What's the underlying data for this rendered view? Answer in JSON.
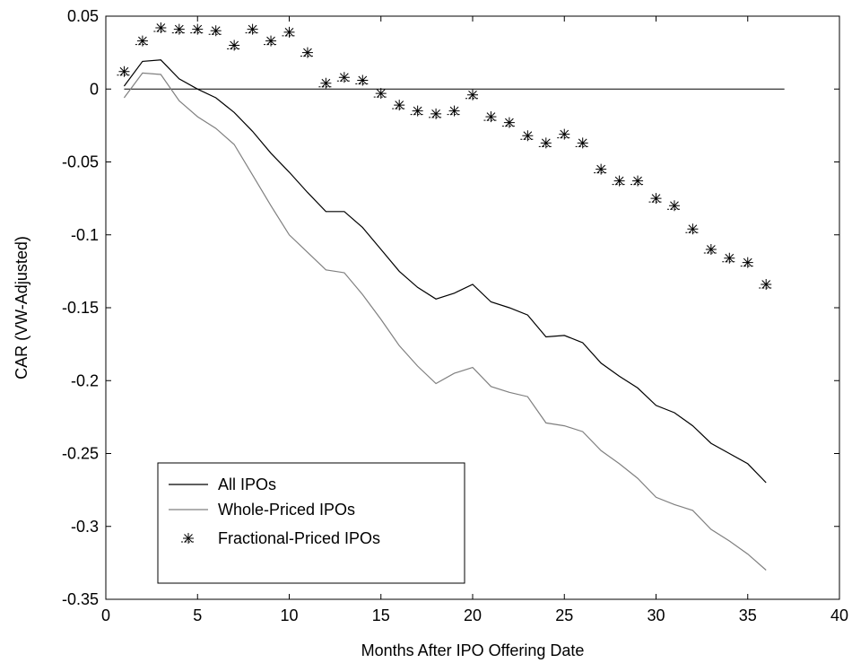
{
  "chart_data": {
    "type": "line",
    "title": "",
    "xlabel": "Months After IPO Offering Date",
    "ylabel": "CAR (VW-Adjusted)",
    "xlim": [
      0,
      40
    ],
    "ylim": [
      -0.35,
      0.05
    ],
    "xticks": [
      0,
      5,
      10,
      15,
      20,
      25,
      30,
      35,
      40
    ],
    "xtick_labels": [
      "0",
      "5",
      "10",
      "15",
      "20",
      "25",
      "30",
      "35",
      "40"
    ],
    "yticks": [
      0.05,
      0,
      -0.05,
      -0.1,
      -0.15,
      -0.2,
      -0.25,
      -0.3,
      -0.35
    ],
    "ytick_labels": [
      "0.05",
      "0",
      "-0.05",
      "-0.1",
      "-0.15",
      "-0.2",
      "-0.25",
      "-0.3",
      "-0.35"
    ],
    "grid": false,
    "legend_position": "bottom-left",
    "reference_line": {
      "y": 0,
      "x_range": [
        1,
        37
      ],
      "color": "#000000"
    },
    "x": [
      1,
      2,
      3,
      4,
      5,
      6,
      7,
      8,
      9,
      10,
      11,
      12,
      13,
      14,
      15,
      16,
      17,
      18,
      19,
      20,
      21,
      22,
      23,
      24,
      25,
      26,
      27,
      28,
      29,
      30,
      31,
      32,
      33,
      34,
      35,
      36
    ],
    "series": [
      {
        "name": "All IPOs",
        "style": "line",
        "color": "#000000",
        "values": [
          0.002,
          0.019,
          0.02,
          0.007,
          0.0,
          -0.006,
          -0.016,
          -0.029,
          -0.044,
          -0.057,
          -0.071,
          -0.084,
          -0.084,
          -0.095,
          -0.11,
          -0.125,
          -0.136,
          -0.144,
          -0.14,
          -0.134,
          -0.146,
          -0.15,
          -0.155,
          -0.17,
          -0.169,
          -0.174,
          -0.188,
          -0.197,
          -0.205,
          -0.217,
          -0.222,
          -0.231,
          -0.243,
          -0.25,
          -0.257,
          -0.27
        ]
      },
      {
        "name": "Whole-Priced IPOs",
        "style": "line",
        "color": "#808080",
        "values": [
          -0.006,
          0.011,
          0.01,
          -0.008,
          -0.019,
          -0.027,
          -0.038,
          -0.059,
          -0.08,
          -0.1,
          -0.112,
          -0.124,
          -0.126,
          -0.141,
          -0.158,
          -0.176,
          -0.19,
          -0.202,
          -0.195,
          -0.191,
          -0.204,
          -0.208,
          -0.211,
          -0.229,
          -0.231,
          -0.235,
          -0.248,
          -0.257,
          -0.267,
          -0.28,
          -0.285,
          -0.289,
          -0.302,
          -0.31,
          -0.319,
          -0.33
        ]
      },
      {
        "name": "Fractional-Priced IPOs",
        "style": "marker",
        "marker": "asterisk-dash",
        "color": "#000000",
        "values": [
          0.012,
          0.033,
          0.042,
          0.041,
          0.041,
          0.04,
          0.03,
          0.041,
          0.033,
          0.039,
          0.025,
          0.004,
          0.008,
          0.006,
          -0.003,
          -0.011,
          -0.015,
          -0.017,
          -0.015,
          -0.004,
          -0.019,
          -0.023,
          -0.032,
          -0.037,
          -0.031,
          -0.037,
          -0.055,
          -0.063,
          -0.063,
          -0.075,
          -0.08,
          -0.096,
          -0.11,
          -0.116,
          -0.119,
          -0.134
        ]
      }
    ]
  }
}
